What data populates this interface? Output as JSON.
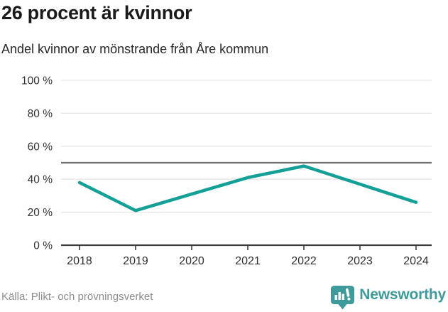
{
  "header": {
    "title": "26 procent är kvinnor",
    "subtitle": "Andel kvinnor av mönstrande från Åre kommun"
  },
  "chart_data": {
    "type": "line",
    "title": "26 procent är kvinnor",
    "subtitle": "Andel kvinnor av mönstrande från Åre kommun",
    "x": [
      "2018",
      "2019",
      "2020",
      "2021",
      "2022",
      "2023",
      "2024"
    ],
    "series": [
      {
        "name": "Andel kvinnor av mönstrande",
        "values": [
          38,
          21,
          31,
          41,
          48,
          37,
          26
        ]
      }
    ],
    "reference_line": {
      "value": 50
    },
    "ylim": [
      0,
      100
    ],
    "yticks": [
      0,
      20,
      40,
      60,
      80,
      100
    ],
    "ytick_labels": [
      "0 %",
      "20 %",
      "40 %",
      "60 %",
      "80 %",
      "100 %"
    ],
    "grid": true,
    "legend": "none",
    "line_color": "#14a096",
    "reference_line_color": "#6f6f6f",
    "gridline_color": "#e6e6e6",
    "axis_color": "#3b3b3b",
    "tick_label_color": "#333333"
  },
  "footer": {
    "source": "Källa: Plikt- och prövningsverket",
    "logo_text": "Newsworthy",
    "logo_color": "#3f9b9b"
  }
}
